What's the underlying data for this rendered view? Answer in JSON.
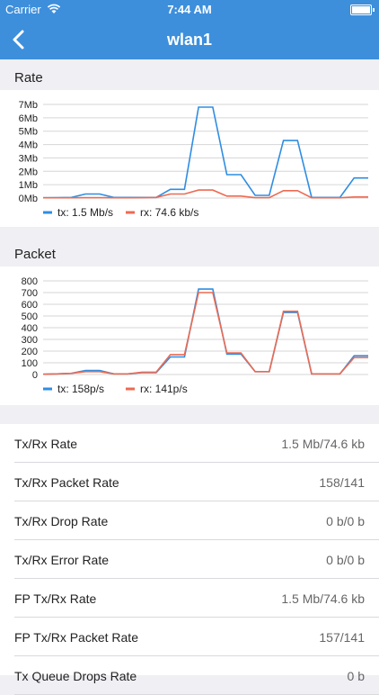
{
  "status_bar": {
    "carrier": "Carrier",
    "time": "7:44 AM"
  },
  "nav": {
    "title": "wlan1"
  },
  "rate_section": {
    "header": "Rate"
  },
  "packet_section": {
    "header": "Packet"
  },
  "colors": {
    "tx": "#2f8de2",
    "rx": "#ec6a52",
    "nav": "#3d8fdc"
  },
  "chart_data": [
    {
      "type": "line",
      "title": "Rate",
      "x": [
        0,
        1,
        2,
        3,
        4,
        5,
        6,
        7,
        8,
        9,
        10,
        11,
        12,
        13,
        14,
        15,
        16,
        17,
        18,
        19,
        20,
        21,
        22,
        23
      ],
      "ylim": [
        0,
        7
      ],
      "yticks": [
        "0Mb",
        "1Mb",
        "2Mb",
        "3Mb",
        "4Mb",
        "5Mb",
        "6Mb",
        "7Mb"
      ],
      "grid": true,
      "legend_position": "bottom",
      "series": [
        {
          "name": "tx: 1.5 Mb/s",
          "color": "#2f8de2",
          "values": [
            0.02,
            0.03,
            0.05,
            0.3,
            0.3,
            0.05,
            0.05,
            0.05,
            0.05,
            0.65,
            0.65,
            6.8,
            6.8,
            1.75,
            1.75,
            0.2,
            0.2,
            4.3,
            4.3,
            0.05,
            0.05,
            0.05,
            1.5,
            1.5
          ]
        },
        {
          "name": "rx: 74.6 kb/s",
          "color": "#ec6a52",
          "values": [
            0.02,
            0.02,
            0.02,
            0.03,
            0.03,
            0.02,
            0.02,
            0.03,
            0.05,
            0.3,
            0.3,
            0.6,
            0.6,
            0.15,
            0.15,
            0.03,
            0.03,
            0.55,
            0.55,
            0.02,
            0.02,
            0.02,
            0.08,
            0.08
          ]
        }
      ]
    },
    {
      "type": "line",
      "title": "Packet",
      "x": [
        0,
        1,
        2,
        3,
        4,
        5,
        6,
        7,
        8,
        9,
        10,
        11,
        12,
        13,
        14,
        15,
        16,
        17,
        18,
        19,
        20,
        21,
        22,
        23
      ],
      "ylim": [
        0,
        800
      ],
      "yticks": [
        "0",
        "100",
        "200",
        "300",
        "400",
        "500",
        "600",
        "700",
        "800"
      ],
      "grid": true,
      "legend_position": "bottom",
      "series": [
        {
          "name": "tx: 158p/s",
          "color": "#2f8de2",
          "values": [
            2,
            5,
            10,
            35,
            35,
            5,
            5,
            15,
            15,
            150,
            150,
            730,
            730,
            175,
            175,
            25,
            25,
            530,
            530,
            5,
            5,
            5,
            160,
            160
          ]
        },
        {
          "name": "rx: 141p/s",
          "color": "#ec6a52",
          "values": [
            2,
            5,
            10,
            25,
            25,
            5,
            5,
            20,
            20,
            170,
            170,
            700,
            700,
            185,
            185,
            25,
            25,
            540,
            540,
            5,
            5,
            5,
            145,
            145
          ]
        }
      ]
    }
  ],
  "metrics": [
    {
      "label": "Tx/Rx Rate",
      "value": "1.5 Mb/74.6 kb"
    },
    {
      "label": "Tx/Rx Packet Rate",
      "value": "158/141"
    },
    {
      "label": "Tx/Rx Drop Rate",
      "value": "0 b/0 b"
    },
    {
      "label": "Tx/Rx Error Rate",
      "value": "0 b/0 b"
    },
    {
      "label": "FP Tx/Rx Rate",
      "value": "1.5 Mb/74.6 kb"
    },
    {
      "label": "FP Tx/Rx Packet Rate",
      "value": "157/141"
    },
    {
      "label": "Tx Queue Drops Rate",
      "value": "0 b"
    }
  ]
}
